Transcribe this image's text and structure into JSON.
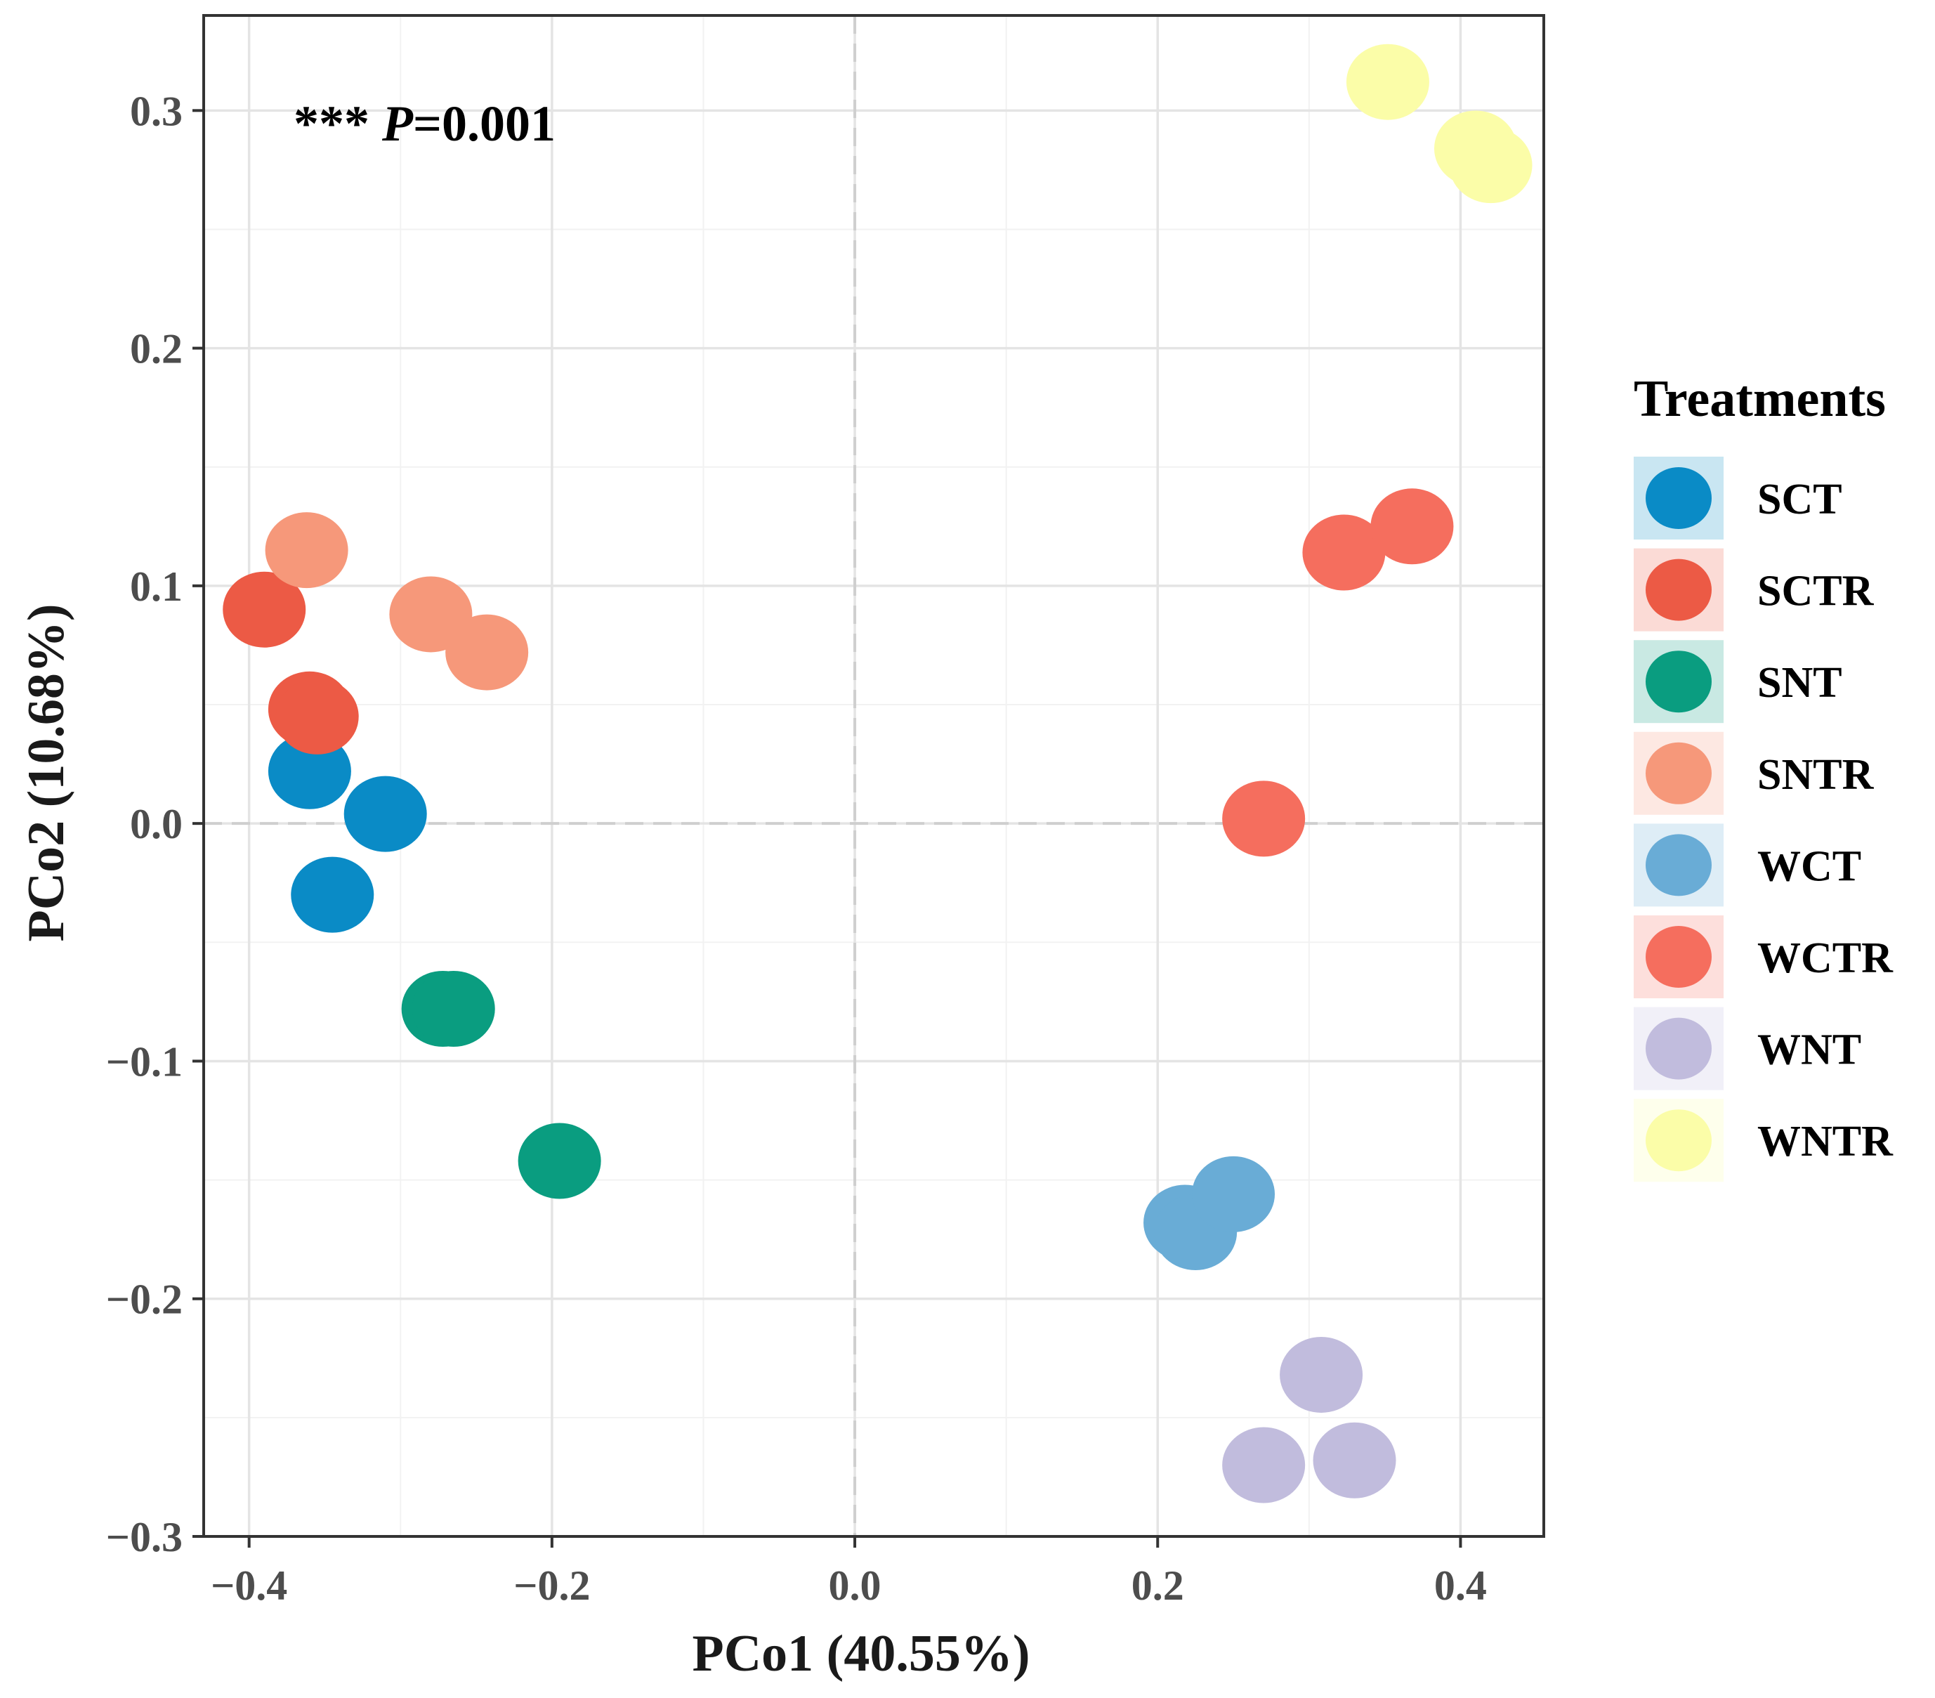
{
  "chart_data": {
    "type": "scatter",
    "title": "",
    "xlabel": "PCo1 (40.55%)",
    "ylabel": "PCo2 (10.68%)",
    "xlim": [
      -0.43,
      0.455
    ],
    "ylim": [
      -0.3,
      0.34
    ],
    "x_ticks": [
      -0.4,
      -0.2,
      0.0,
      0.2,
      0.4
    ],
    "x_tick_labels": [
      "−0.4",
      "−0.2",
      "0.0",
      "0.2",
      "0.4"
    ],
    "y_ticks": [
      -0.3,
      -0.2,
      -0.1,
      0.0,
      0.1,
      0.2,
      0.3
    ],
    "y_tick_labels": [
      "−0.3",
      "−0.2",
      "−0.1",
      "0.0",
      "0.1",
      "0.2",
      "0.3"
    ],
    "grid": true,
    "zero_lines": true,
    "annotation": {
      "stars": "***",
      "p_label": "P",
      "p_value": "=0.001"
    },
    "legend": {
      "title": "Treatments",
      "position": "right"
    },
    "series": [
      {
        "name": "SCT",
        "color": "#0A8BC6",
        "points": [
          [
            -0.36,
            0.022
          ],
          [
            -0.31,
            0.004
          ],
          [
            -0.345,
            -0.03
          ]
        ]
      },
      {
        "name": "SCTR",
        "color": "#EC5A45",
        "points": [
          [
            -0.39,
            0.09
          ],
          [
            -0.36,
            0.048
          ],
          [
            -0.355,
            0.045
          ]
        ]
      },
      {
        "name": "SNT",
        "color": "#0A9D80",
        "points": [
          [
            -0.272,
            -0.078
          ],
          [
            -0.265,
            -0.078
          ],
          [
            -0.195,
            -0.142
          ]
        ]
      },
      {
        "name": "SNTR",
        "color": "#F6987A",
        "points": [
          [
            -0.362,
            0.115
          ],
          [
            -0.28,
            0.088
          ],
          [
            -0.243,
            0.072
          ]
        ]
      },
      {
        "name": "WCT",
        "color": "#69ACD6",
        "points": [
          [
            0.218,
            -0.168
          ],
          [
            0.225,
            -0.172
          ],
          [
            0.25,
            -0.156
          ]
        ]
      },
      {
        "name": "WCTR",
        "color": "#F56E5E",
        "points": [
          [
            0.27,
            0.002
          ],
          [
            0.323,
            0.114
          ],
          [
            0.368,
            0.125
          ]
        ]
      },
      {
        "name": "WNT",
        "color": "#C1BCDD",
        "points": [
          [
            0.308,
            -0.232
          ],
          [
            0.27,
            -0.27
          ],
          [
            0.33,
            -0.268
          ]
        ]
      },
      {
        "name": "WNTR",
        "color": "#FBFDA8",
        "points": [
          [
            0.352,
            0.312
          ],
          [
            0.41,
            0.284
          ],
          [
            0.42,
            0.277
          ]
        ]
      }
    ]
  }
}
